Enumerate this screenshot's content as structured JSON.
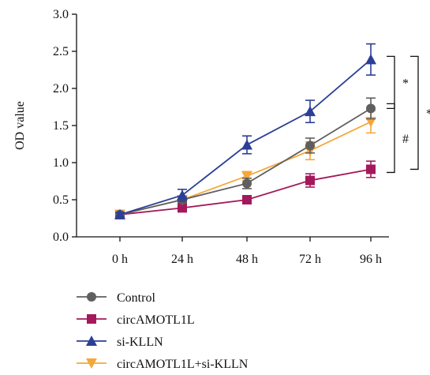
{
  "chart_data": {
    "type": "line",
    "ylabel": "OD value",
    "xlabel": "",
    "categories": [
      "0 h",
      "24 h",
      "48 h",
      "72 h",
      "96 h"
    ],
    "ylim": [
      0,
      3.0
    ],
    "yticks": [
      "0.0",
      "0.5",
      "1.0",
      "1.5",
      "2.0",
      "2.5",
      "3.0"
    ],
    "grid": false,
    "legend_position": "bottom",
    "series": [
      {
        "name": "Control",
        "color": "#5f5f5f",
        "marker": "circle",
        "values": [
          0.3,
          0.5,
          0.72,
          1.23,
          1.73
        ],
        "errors": [
          0.03,
          0.04,
          0.07,
          0.1,
          0.14
        ]
      },
      {
        "name": "circAMOTL1L",
        "color": "#a3195b",
        "marker": "square",
        "values": [
          0.3,
          0.39,
          0.5,
          0.76,
          0.91
        ],
        "errors": [
          0.03,
          0.03,
          0.04,
          0.09,
          0.11
        ]
      },
      {
        "name": "si-KLLN",
        "color": "#2b3f96",
        "marker": "triangle-up",
        "values": [
          0.3,
          0.56,
          1.24,
          1.69,
          2.39
        ],
        "errors": [
          0.03,
          0.08,
          0.12,
          0.15,
          0.21
        ]
      },
      {
        "name": "circAMOTL1L+si-KLLN",
        "color": "#f5a73b",
        "marker": "triangle-down",
        "values": [
          0.3,
          0.5,
          0.82,
          1.16,
          1.55
        ],
        "errors": [
          0.03,
          0.04,
          0.06,
          0.12,
          0.15
        ]
      }
    ],
    "annotations": [
      {
        "text": "*",
        "between": [
          "si-KLLN",
          "Control"
        ]
      },
      {
        "text": "#",
        "between": [
          "Control",
          "circAMOTL1L"
        ]
      },
      {
        "text": "*",
        "between": [
          "si-KLLN",
          "circAMOTL1L"
        ]
      }
    ]
  }
}
